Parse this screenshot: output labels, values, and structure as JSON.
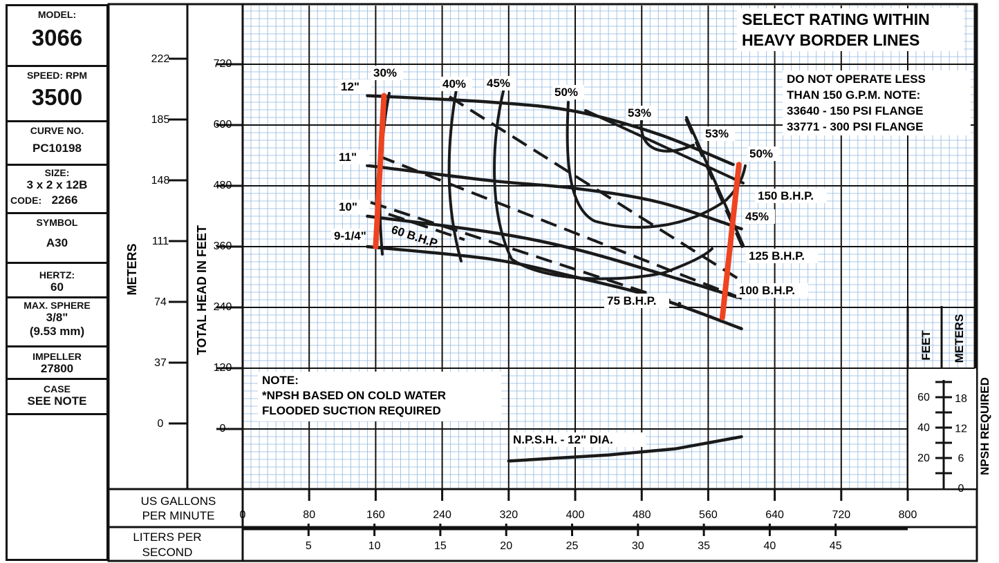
{
  "sidebar": {
    "model_label": "MODEL:",
    "model": "3066",
    "speed_label": "SPEED: RPM",
    "speed": "3500",
    "curve_label": "CURVE NO.",
    "curve": "PC10198",
    "size_label": "SIZE:",
    "size": "3 x 2 x 12B",
    "code_label": "CODE:",
    "code": "2266",
    "symbol_label": "SYMBOL",
    "symbol": "A30",
    "hertz_label": "HERTZ:",
    "hertz": "60",
    "sphere_label": "MAX. SPHERE",
    "sphere_in": "3/8\"",
    "sphere_mm": "(9.53 mm)",
    "impeller_label": "IMPELLER",
    "impeller": "27800",
    "case_label": "CASE",
    "case": "SEE NOTE"
  },
  "chart_data": {
    "type": "line",
    "xlabel": "US GALLONS PER MINUTE",
    "xlabel_lines": [
      "US GALLONS",
      "PER MINUTE"
    ],
    "x2label_lines": [
      "LITERS PER",
      "SECOND"
    ],
    "ylabel": "TOTAL HEAD IN FEET",
    "y2label": "METERS",
    "npsh_label": "NPSH REQUIRED",
    "npsh_unit_feet": "FEET",
    "npsh_unit_meters": "METERS",
    "xlim": [
      0,
      800
    ],
    "ylim": [
      -100,
      800
    ],
    "x_ticks": [
      0,
      80,
      160,
      240,
      320,
      400,
      480,
      560,
      640,
      720,
      800
    ],
    "x2_ticks": [
      5,
      10,
      15,
      20,
      25,
      30,
      35,
      40,
      45
    ],
    "y_ticks": [
      0,
      120,
      240,
      360,
      480,
      600,
      720
    ],
    "meter_ticks": [
      0,
      37,
      74,
      111,
      148,
      185,
      222
    ],
    "npsh_feet_ticks": [
      20,
      40,
      60
    ],
    "npsh_meter_ticks": [
      0,
      6,
      12,
      18
    ],
    "notes": {
      "select": [
        "SELECT RATING WITHIN",
        "HEAVY BORDER LINES"
      ],
      "operate": [
        "DO NOT OPERATE LESS",
        "THAN 150 G.P.M. NOTE:",
        "33640 - 150 PSI FLANGE",
        "33771 - 300 PSI FLANGE"
      ],
      "npsh_note": [
        "NOTE:",
        "*NPSH BASED ON COLD WATER",
        "FLOODED SUCTION REQUIRED"
      ],
      "npsh_curve": "N.P.S.H. - 12\" DIA."
    },
    "impeller_curves": [
      {
        "name": "12\"",
        "points": [
          [
            150,
            658
          ],
          [
            300,
            645
          ],
          [
            400,
            627
          ],
          [
            500,
            582
          ],
          [
            590,
            522
          ]
        ]
      },
      {
        "name": "11\"",
        "points": [
          [
            150,
            520
          ],
          [
            300,
            490
          ],
          [
            400,
            475
          ],
          [
            500,
            448
          ],
          [
            600,
            395
          ]
        ]
      },
      {
        "name": "10\"",
        "points": [
          [
            150,
            420
          ],
          [
            300,
            388
          ],
          [
            400,
            355
          ],
          [
            500,
            308
          ],
          [
            595,
            260
          ]
        ]
      },
      {
        "name": "9-1/4\"",
        "points": [
          [
            150,
            360
          ],
          [
            300,
            335
          ],
          [
            400,
            300
          ],
          [
            500,
            258
          ],
          [
            600,
            198
          ]
        ]
      }
    ],
    "efficiency_labels": [
      "30%",
      "40%",
      "45%",
      "50%",
      "53%",
      "53%",
      "50%",
      "45%"
    ],
    "bhp_labels": [
      "60 B.H.P.",
      "75 B.H.P.",
      "100 B.H.P.",
      "125 B.H.P.",
      "150 B.H.P."
    ],
    "border_lines": [
      {
        "points": [
          [
            170,
            658
          ],
          [
            160,
            360
          ]
        ]
      },
      {
        "points": [
          [
            597,
            522
          ],
          [
            577,
            220
          ]
        ]
      }
    ],
    "npsh_curve_data": {
      "feet": [
        [
          320,
          18
        ],
        [
          440,
          22
        ],
        [
          520,
          26
        ],
        [
          600,
          34
        ]
      ]
    }
  }
}
